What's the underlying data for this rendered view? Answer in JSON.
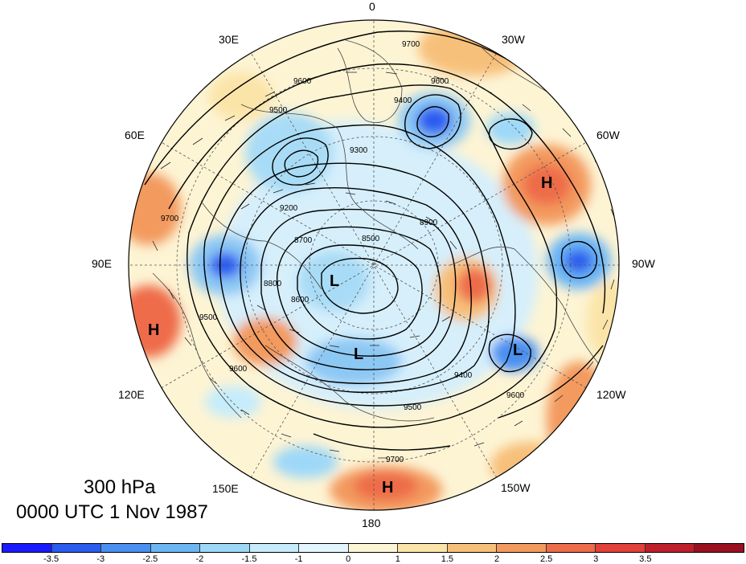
{
  "title": {
    "level": "300 hPa",
    "datetime": "0000 UTC 1 Nov 1987"
  },
  "longitude_labels": [
    {
      "text": "0"
    },
    {
      "text": "30W"
    },
    {
      "text": "60W"
    },
    {
      "text": "90W"
    },
    {
      "text": "120W"
    },
    {
      "text": "150W"
    },
    {
      "text": "180"
    },
    {
      "text": "150E"
    },
    {
      "text": "120E"
    },
    {
      "text": "90E"
    },
    {
      "text": "60E"
    },
    {
      "text": "30E"
    }
  ],
  "pressure_systems": [
    {
      "type": "H"
    },
    {
      "type": "H"
    },
    {
      "type": "H"
    },
    {
      "type": "L"
    },
    {
      "type": "L"
    },
    {
      "type": "L"
    }
  ],
  "contour_labels": [
    "9700",
    "9600",
    "9500",
    "9400",
    "9300",
    "9200",
    "8900",
    "8800",
    "8700",
    "8600",
    "8500",
    "9600",
    "9500",
    "9700",
    "9400",
    "9600",
    "9700",
    "9500",
    "9600"
  ],
  "colorbar": {
    "colors": [
      "#1a1aff",
      "#2a5cf0",
      "#4a90f0",
      "#6cb6f4",
      "#9ed8f8",
      "#c6ecfb",
      "#e4f6fd",
      "#fdf6d6",
      "#fbe4a8",
      "#f7c07a",
      "#f39a5e",
      "#ee6c4a",
      "#e2403a",
      "#c01f2a",
      "#9a1020"
    ],
    "tick_labels": [
      "-3.5",
      "-3",
      "-2.5",
      "-2",
      "-1.5",
      "-1",
      "0",
      "1",
      "1.5",
      "2",
      "2.5",
      "3",
      "3.5"
    ]
  }
}
